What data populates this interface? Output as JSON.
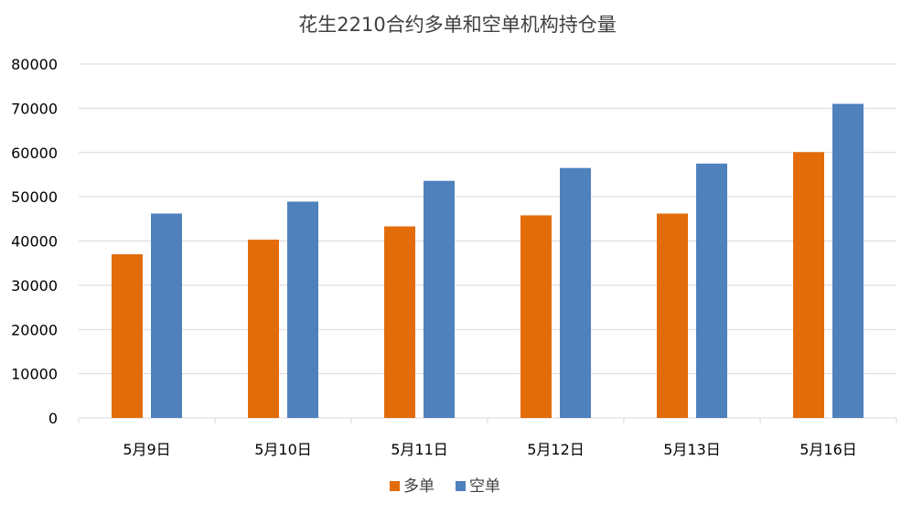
{
  "chart_data": {
    "type": "bar",
    "title": "花生2210合约多单和空单机构持仓量",
    "categories": [
      "5月9日",
      "5月10日",
      "5月11日",
      "5月12日",
      "5月13日",
      "5月16日"
    ],
    "series": [
      {
        "name": "多单",
        "color": "#E36C0A",
        "values": [
          37000,
          40300,
          43300,
          45800,
          46200,
          60100
        ]
      },
      {
        "name": "空单",
        "color": "#4F81BD",
        "values": [
          46200,
          48900,
          53600,
          56500,
          57500,
          71000
        ]
      }
    ],
    "ylim": [
      0,
      80000
    ],
    "yticks": [
      "0",
      "10000",
      "20000",
      "30000",
      "40000",
      "50000",
      "60000",
      "70000",
      "80000"
    ],
    "grid": true,
    "legend_position": "bottom",
    "gridline_color": "#D9D9D9"
  }
}
